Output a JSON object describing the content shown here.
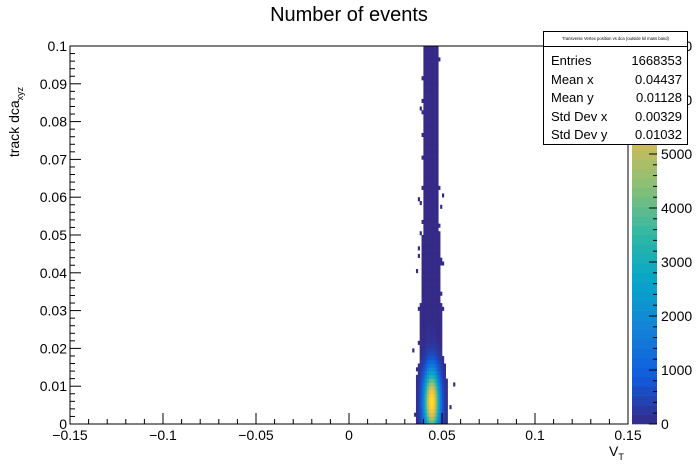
{
  "chart_data": {
    "type": "heatmap",
    "title": "Number of events",
    "xlabel": "V",
    "xlabel_sub": "T",
    "ylabel": "track dca",
    "ylabel_sub": "xyz",
    "xlim": [
      -0.15,
      0.15
    ],
    "ylim": [
      0,
      0.1
    ],
    "x_ticks": [
      "−0.15",
      "−0.1",
      "−0.05",
      "0",
      "0.05",
      "0.1",
      "0.15"
    ],
    "x_tick_values": [
      -0.15,
      -0.1,
      -0.05,
      0,
      0.05,
      0.1,
      0.15
    ],
    "y_ticks": [
      "0",
      "0.01",
      "0.02",
      "0.03",
      "0.04",
      "0.05",
      "0.06",
      "0.07",
      "0.08",
      "0.09",
      "0.1"
    ],
    "y_tick_values": [
      0,
      0.01,
      0.02,
      0.03,
      0.04,
      0.05,
      0.06,
      0.07,
      0.08,
      0.09,
      0.1
    ],
    "z_ticks": [
      "0",
      "1000",
      "2000",
      "3000",
      "4000",
      "5000",
      "6000",
      "7000"
    ],
    "z_tick_values": [
      0,
      1000,
      2000,
      3000,
      4000,
      5000,
      6000,
      7000
    ],
    "zlim": [
      0,
      7000
    ],
    "distribution": {
      "peak_x": 0.0445,
      "peak_y": 0.006,
      "peak_count": 6500,
      "band_center_x": 0.044,
      "band_sigma_x_near_peak": 0.0033,
      "band_sigma_x_at_top": 0.0018
    },
    "palette": [
      "#352a87",
      "#0f5cdd",
      "#1481d6",
      "#06a4ca",
      "#2eb7a4",
      "#87bf77",
      "#d1bb59",
      "#fec832",
      "#f9fb0e"
    ],
    "stats_box": {
      "header": "Transverse Vertex position vs dca (outside kil mass band)",
      "rows": [
        {
          "label": "Entries",
          "value": "1668353"
        },
        {
          "label": "Mean x",
          "value": "0.04437"
        },
        {
          "label": "Mean y",
          "value": "0.01128"
        },
        {
          "label": "Std Dev x",
          "value": "0.00329"
        },
        {
          "label": "Std Dev y",
          "value": "0.01032"
        }
      ]
    }
  }
}
